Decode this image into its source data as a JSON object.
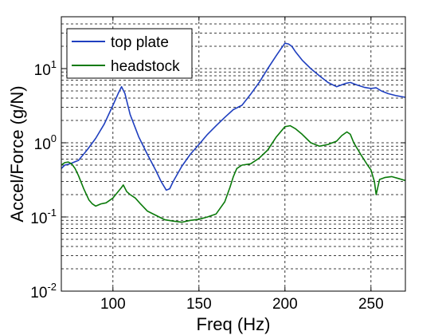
{
  "chart_data": {
    "type": "line",
    "title": "",
    "xlabel": "Freq (Hz)",
    "ylabel": "Accel/Force (g/N)",
    "xlim": [
      70,
      270
    ],
    "ylim": [
      0.01,
      50
    ],
    "yscale": "log",
    "grid": true,
    "legend_position": "top-left",
    "x_ticks": [
      "100",
      "150",
      "200",
      "250"
    ],
    "y_ticks": [
      {
        "base": "10",
        "exp": "-2",
        "value": 0.01
      },
      {
        "base": "10",
        "exp": "-1",
        "value": 0.1
      },
      {
        "base": "10",
        "exp": "0",
        "value": 1
      },
      {
        "base": "10",
        "exp": "1",
        "value": 10
      }
    ],
    "series": [
      {
        "name": "top plate",
        "color": "#1f3fbf",
        "x": [
          70,
          72,
          75,
          80,
          85,
          90,
          95,
          100,
          103,
          105,
          107,
          110,
          115,
          120,
          125,
          128,
          131,
          133,
          135,
          140,
          145,
          150,
          155,
          160,
          165,
          170,
          175,
          180,
          185,
          190,
          195,
          198,
          200,
          202,
          204,
          206,
          210,
          215,
          220,
          225,
          230,
          235,
          238,
          242,
          246,
          250,
          253,
          256,
          260,
          265,
          270
        ],
        "y": [
          0.45,
          0.5,
          0.52,
          0.58,
          0.8,
          1.15,
          1.8,
          3.2,
          4.6,
          5.7,
          4.6,
          2.4,
          1.2,
          0.7,
          0.42,
          0.3,
          0.23,
          0.24,
          0.3,
          0.48,
          0.7,
          0.95,
          1.3,
          1.7,
          2.2,
          2.8,
          3.2,
          4.5,
          6.5,
          10,
          15,
          19,
          22,
          21.5,
          20,
          17,
          13,
          10,
          8,
          6.5,
          5.7,
          6.3,
          6.5,
          6,
          5.6,
          5.4,
          5.5,
          5,
          4.6,
          4.3,
          4.1
        ]
      },
      {
        "name": "headstock",
        "color": "#0a7a0a",
        "x": [
          70,
          72,
          74,
          76,
          78,
          80,
          83,
          86,
          88,
          90,
          93,
          96,
          100,
          103,
          105,
          106,
          108,
          110,
          113,
          116,
          120,
          125,
          130,
          135,
          140,
          145,
          150,
          155,
          160,
          165,
          168,
          170,
          172,
          175,
          180,
          185,
          190,
          195,
          200,
          203,
          206,
          210,
          215,
          220,
          225,
          230,
          233,
          236,
          238,
          240,
          244,
          248,
          250,
          252,
          253,
          255,
          258,
          262,
          266,
          270
        ],
        "y": [
          0.5,
          0.54,
          0.55,
          0.52,
          0.45,
          0.36,
          0.24,
          0.17,
          0.15,
          0.14,
          0.15,
          0.155,
          0.18,
          0.22,
          0.25,
          0.27,
          0.22,
          0.2,
          0.18,
          0.15,
          0.12,
          0.105,
          0.092,
          0.088,
          0.085,
          0.09,
          0.093,
          0.1,
          0.11,
          0.16,
          0.25,
          0.35,
          0.45,
          0.5,
          0.52,
          0.62,
          0.8,
          1.2,
          1.65,
          1.7,
          1.55,
          1.3,
          1.0,
          0.9,
          0.95,
          1.05,
          1.25,
          1.4,
          1.3,
          1.0,
          0.7,
          0.5,
          0.43,
          0.3,
          0.2,
          0.32,
          0.34,
          0.35,
          0.33,
          0.31
        ]
      }
    ]
  }
}
